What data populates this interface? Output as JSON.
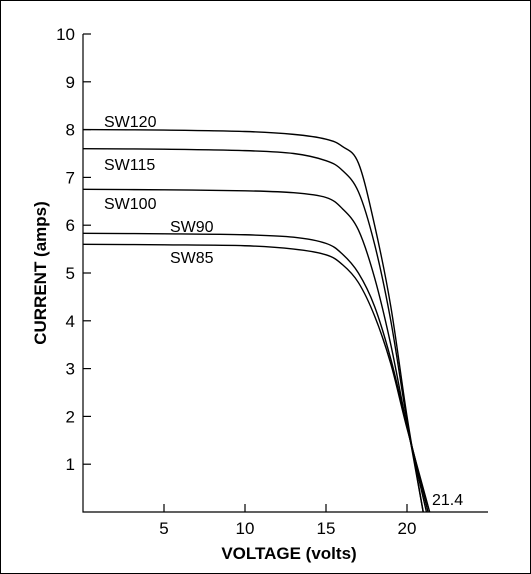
{
  "chart_data": {
    "type": "line",
    "xlabel": "VOLTAGE (volts)",
    "ylabel": "CURRENT (amps)",
    "xlim": [
      0,
      25
    ],
    "ylim": [
      0,
      10
    ],
    "x_ticks": [
      5,
      10,
      15,
      20
    ],
    "y_ticks": [
      1,
      2,
      3,
      4,
      5,
      6,
      7,
      8,
      9,
      10
    ],
    "grid": false,
    "annotations": [
      {
        "text": "21.4",
        "x": 21.4,
        "y": 0
      }
    ],
    "series": [
      {
        "name": "SW120",
        "x": [
          0,
          5,
          10,
          13,
          15,
          16,
          17,
          18,
          19,
          20,
          21.0
        ],
        "y": [
          8.0,
          7.99,
          7.96,
          7.9,
          7.8,
          7.65,
          7.3,
          6.0,
          4.3,
          2.0,
          0
        ]
      },
      {
        "name": "SW115",
        "x": [
          0,
          5,
          10,
          13,
          15,
          16,
          17,
          18,
          19,
          20,
          21.0
        ],
        "y": [
          7.6,
          7.59,
          7.56,
          7.5,
          7.35,
          7.15,
          6.7,
          5.6,
          4.0,
          1.9,
          0
        ]
      },
      {
        "name": "SW100",
        "x": [
          0,
          5,
          10,
          13,
          15,
          16,
          17,
          18,
          19,
          20,
          21.2
        ],
        "y": [
          6.75,
          6.74,
          6.72,
          6.68,
          6.58,
          6.35,
          5.9,
          4.9,
          3.5,
          1.8,
          0
        ]
      },
      {
        "name": "SW90",
        "x": [
          0,
          5,
          10,
          13,
          15,
          16,
          17,
          18,
          19,
          20,
          21.3
        ],
        "y": [
          5.83,
          5.82,
          5.8,
          5.75,
          5.62,
          5.4,
          5.0,
          4.3,
          3.2,
          1.8,
          0
        ]
      },
      {
        "name": "SW85",
        "x": [
          0,
          5,
          10,
          13,
          15,
          16,
          17,
          18,
          19,
          20,
          21.4
        ],
        "y": [
          5.6,
          5.59,
          5.57,
          5.5,
          5.38,
          5.18,
          4.8,
          4.1,
          3.1,
          1.75,
          0
        ]
      }
    ]
  }
}
